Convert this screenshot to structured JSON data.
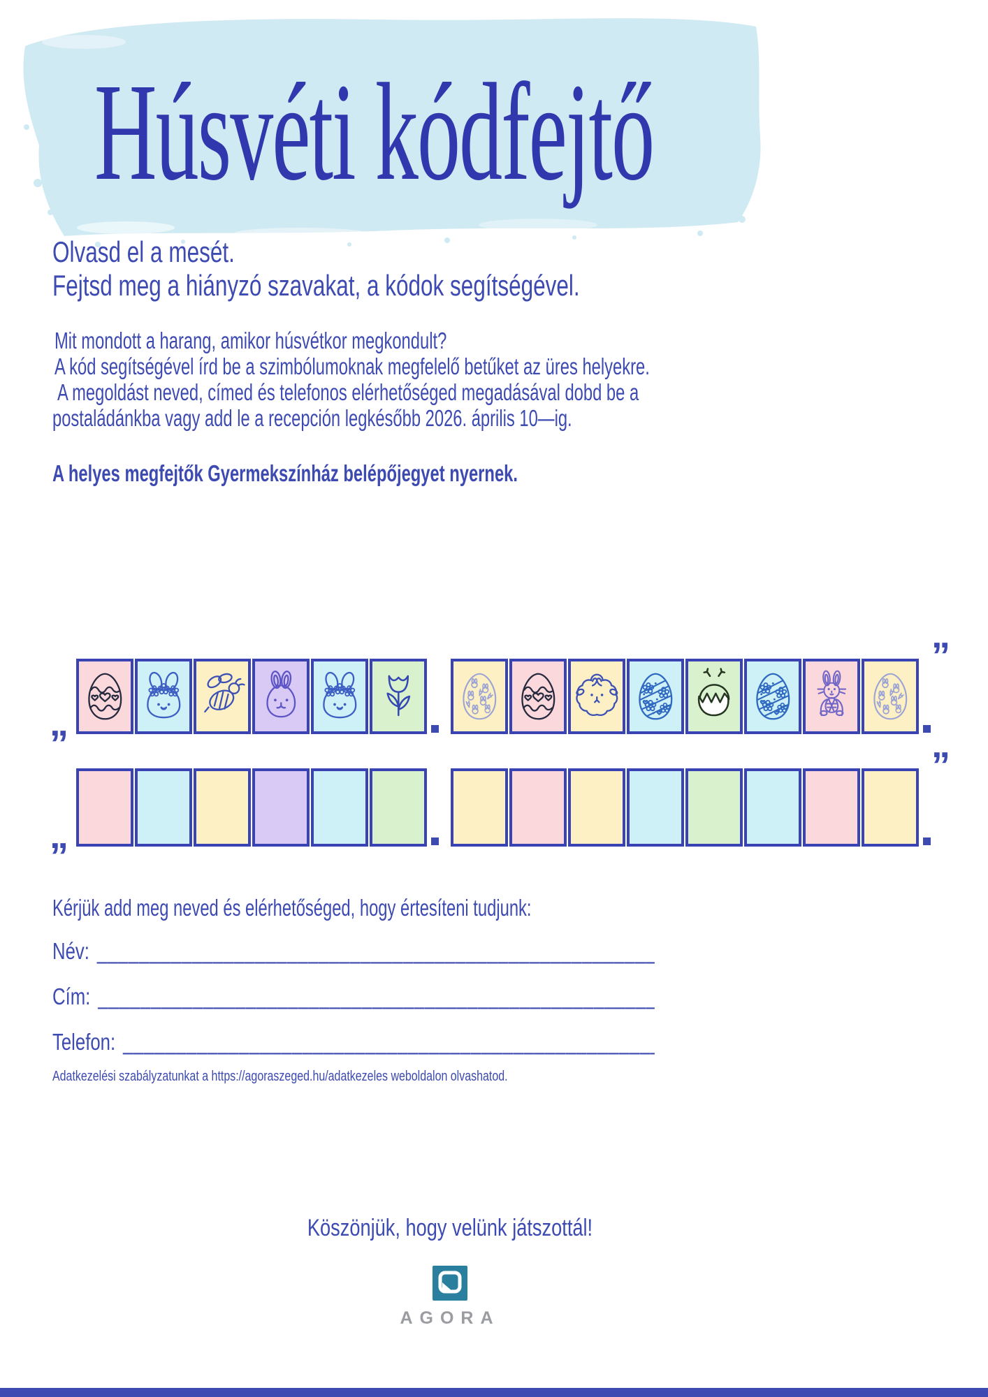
{
  "title": "Húsvéti kódfejtő",
  "intro": {
    "line1": "Olvasd el a mesét.",
    "line2": "Fejtsd meg a hiányzó szavakat, a kódok segítségével."
  },
  "instructions": {
    "line1": "Mit mondott a harang, amikor húsvétkor megkondult?",
    "line2": "A kód segítségével írd be a szimbólumoknak megfelelő betűket az üres helyekre.",
    "line3": "A megoldást neved, címed és telefonos elérhetőséged megadásával dobd be a",
    "line4": "postaládánkba vagy add le a recepción legkésőbb 2026. április 10—ig."
  },
  "prize": "A helyes megfejtők Gyermekszínház belépőjegyet nyernek.",
  "puzzle": {
    "open_quote": "„",
    "close_quote": "”",
    "word_separator": ".",
    "symbol_words": [
      {
        "cells": [
          {
            "bg": "pink",
            "icon": "egg-hearts"
          },
          {
            "bg": "cyan",
            "icon": "bunny-flower-crown"
          },
          {
            "bg": "yellow",
            "icon": "bee"
          },
          {
            "bg": "purple",
            "icon": "bunny"
          },
          {
            "bg": "cyan",
            "icon": "bunny-flower-crown"
          },
          {
            "bg": "green",
            "icon": "tulip"
          }
        ]
      },
      {
        "cells": [
          {
            "bg": "yellow",
            "icon": "egg-bunny-pattern"
          },
          {
            "bg": "pink",
            "icon": "egg-hearts"
          },
          {
            "bg": "yellow",
            "icon": "sheep"
          },
          {
            "bg": "cyan",
            "icon": "egg-flowers"
          },
          {
            "bg": "green",
            "icon": "hatching-chick"
          },
          {
            "bg": "cyan",
            "icon": "egg-flowers"
          },
          {
            "bg": "pink",
            "icon": "bunny-holding-egg"
          },
          {
            "bg": "yellow",
            "icon": "egg-bunny-pattern"
          }
        ]
      }
    ],
    "answer_words": [
      {
        "cells": [
          {
            "bg": "pink"
          },
          {
            "bg": "cyan"
          },
          {
            "bg": "yellow"
          },
          {
            "bg": "purple"
          },
          {
            "bg": "cyan"
          },
          {
            "bg": "green"
          }
        ]
      },
      {
        "cells": [
          {
            "bg": "yellow"
          },
          {
            "bg": "pink"
          },
          {
            "bg": "yellow"
          },
          {
            "bg": "cyan"
          },
          {
            "bg": "green"
          },
          {
            "bg": "cyan"
          },
          {
            "bg": "pink"
          },
          {
            "bg": "yellow"
          }
        ]
      }
    ]
  },
  "form": {
    "intro": "Kérjük add meg neved és elérhetőséged, hogy értesíteni tudjunk:",
    "fields": [
      {
        "label": "Név:",
        "line": "______________________________________________________________________"
      },
      {
        "label": "Cím:",
        "line": "______________________________________________________________________"
      },
      {
        "label": "Telefon:",
        "line": "______________________________________________________________________"
      }
    ]
  },
  "privacy": "Adatkezelési szabályzatunkat a https://agoraszeged.hu/adatkezeles weboldalon olvashatod.",
  "thanks": "Köszönjük, hogy velünk játszottál!",
  "logo": {
    "brand": "AGORA"
  },
  "colors": {
    "title_blue": "#3137ad",
    "text_blue": "#3d4ab1",
    "border_blue": "#3a43b4",
    "brush_blue": "#cfeaf3",
    "cell_pink": "#fbd8dc",
    "cell_cyan": "#cdf1f7",
    "cell_yellow": "#fdf0c5",
    "cell_purple": "#d9c9f5",
    "cell_green": "#daf1cd",
    "logo_teal": "#2a7f9f",
    "logo_gray": "#9b9ca1"
  }
}
